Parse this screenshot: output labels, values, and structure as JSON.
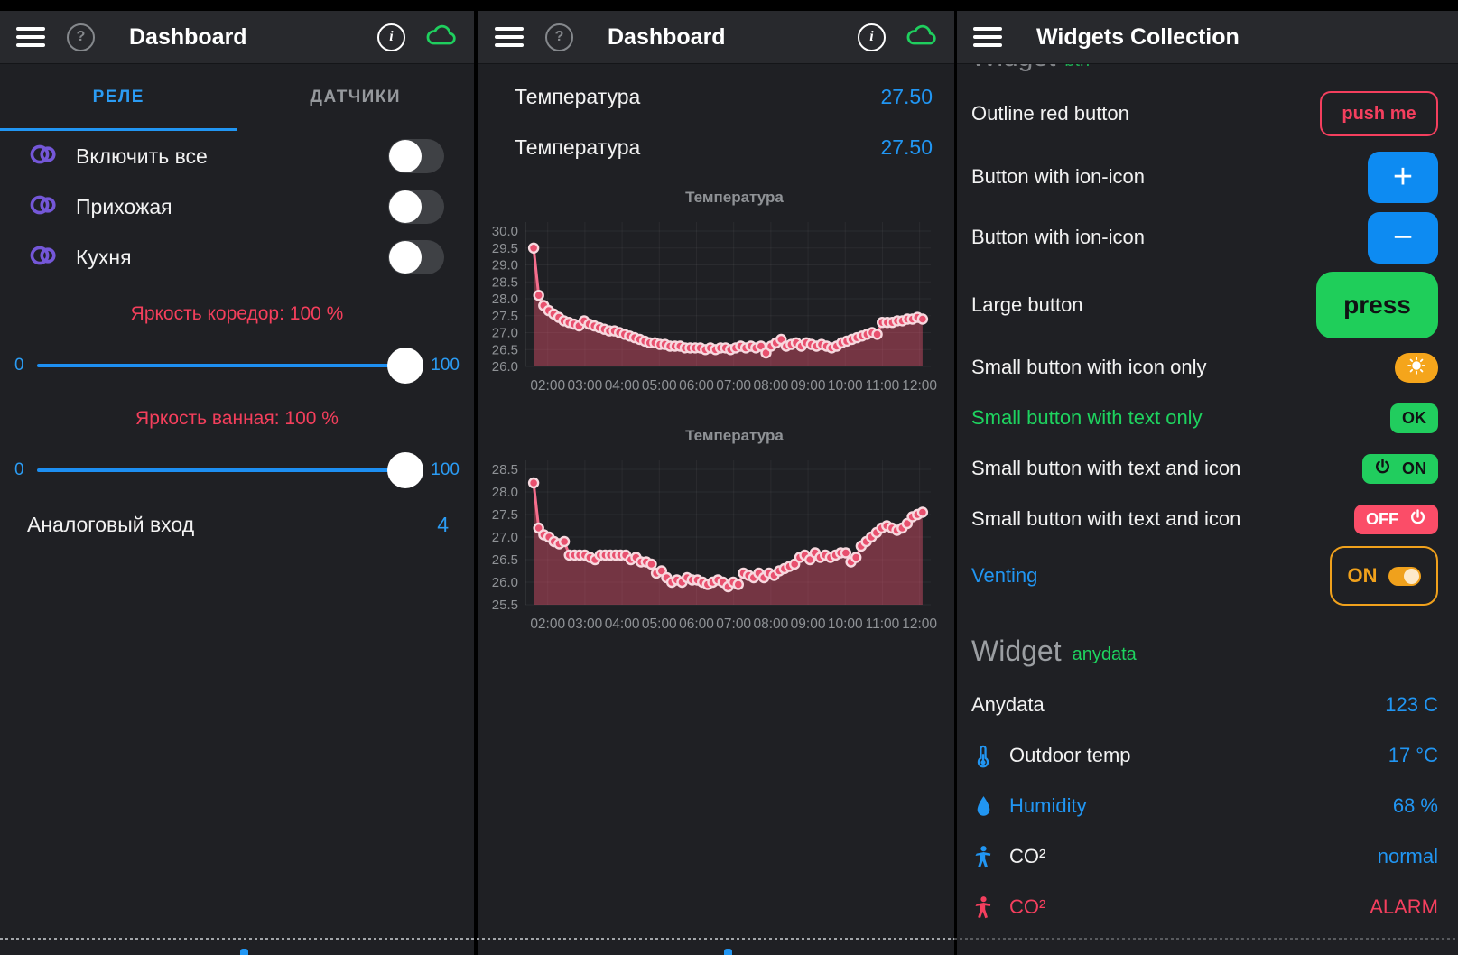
{
  "colors": {
    "accent_blue": "#2196f3",
    "pink_red": "#f43f5e",
    "green": "#1ed35f",
    "orange": "#f5a51b",
    "purple": "#7457d8",
    "button_blue": "#0d8bf2",
    "cloud_green": "#1fcf5e",
    "chart_line": "#f56e8d",
    "chart_dot": "#e8506e"
  },
  "left_screen": {
    "header": {
      "title": "Dashboard"
    },
    "tabs": [
      {
        "label": "РЕЛЕ",
        "active": true
      },
      {
        "label": "ДАТЧИКИ",
        "active": false
      }
    ],
    "switches": [
      {
        "icon": "toggle-icon",
        "label": "Включить все",
        "state": "off"
      },
      {
        "icon": "toggle-icon",
        "label": "Прихожая",
        "state": "off"
      },
      {
        "icon": "toggle-icon",
        "label": "Кухня",
        "state": "off"
      }
    ],
    "sliders": [
      {
        "label": "Яркость коредор: 100 %",
        "min": "0",
        "max": "100",
        "value": 100
      },
      {
        "label": "Яркость ванная: 100 %",
        "min": "0",
        "max": "100",
        "value": 100
      }
    ],
    "analog": {
      "label": "Аналоговый вход",
      "value": "4"
    }
  },
  "mid_screen": {
    "header": {
      "title": "Dashboard"
    },
    "value_rows": [
      {
        "label": "Температура",
        "value": "27.50"
      },
      {
        "label": "Температура",
        "value": "27.50"
      }
    ]
  },
  "right_screen": {
    "header": {
      "title": "Widgets Collection"
    },
    "clipped_heading": {
      "word": "Widget",
      "tag": "btn"
    },
    "button_rows": [
      {
        "label": "Outline red button",
        "button_text": "push me",
        "style": "outline-red"
      },
      {
        "label": "Button with ion-icon",
        "glyph": "+",
        "icon": "plus-icon",
        "style": "blue"
      },
      {
        "label": "Button with ion-icon",
        "glyph": "−",
        "icon": "minus-icon",
        "style": "blue"
      },
      {
        "label": "Large button",
        "button_text": "press",
        "style": "green-large"
      },
      {
        "label": "Small button with icon only",
        "icon": "sun-icon",
        "style": "orange-small"
      },
      {
        "label": "Small button with text only",
        "button_text": "OK",
        "style": "green-small"
      },
      {
        "label": "Small button with text and icon",
        "button_text": "ON",
        "icon": "power-icon",
        "style": "green-small"
      },
      {
        "label": "Small button with text and icon",
        "button_text": "OFF",
        "icon": "power-icon",
        "style": "red-small"
      },
      {
        "label": "Venting",
        "button_text": "ON",
        "style": "outline-orange-toggle",
        "toggle_state": "on"
      }
    ],
    "anydata": {
      "heading": "Widget",
      "tag": "anydata",
      "rows": [
        {
          "label": "Anydata",
          "value": "123 C"
        },
        {
          "icon": "thermometer-icon",
          "label": "Outdoor temp",
          "value": "17 °C"
        },
        {
          "icon": "droplet-icon",
          "label": "Humidity",
          "value": "68 %"
        },
        {
          "icon": "person-icon",
          "label": "CO²",
          "value": "normal"
        },
        {
          "icon": "person-icon",
          "label": "CO²",
          "value": "ALARM"
        }
      ]
    }
  },
  "chart_data": [
    {
      "type": "line",
      "title": "Температура",
      "x_ticks": [
        "02:00",
        "03:00",
        "04:00",
        "05:00",
        "06:00",
        "07:00",
        "08:00",
        "09:00",
        "10:00",
        "11:00",
        "12:00"
      ],
      "ylim": [
        26.0,
        30.0
      ],
      "y_step": 0.5,
      "grid": true,
      "area": true,
      "values": [
        29.5,
        28.1,
        27.8,
        27.65,
        27.55,
        27.45,
        27.35,
        27.3,
        27.25,
        27.2,
        27.35,
        27.25,
        27.2,
        27.15,
        27.1,
        27.05,
        27.05,
        27.0,
        26.95,
        26.9,
        26.85,
        26.8,
        26.75,
        26.7,
        26.7,
        26.65,
        26.65,
        26.6,
        26.6,
        26.6,
        26.55,
        26.55,
        26.55,
        26.55,
        26.5,
        26.55,
        26.5,
        26.55,
        26.55,
        26.5,
        26.55,
        26.6,
        26.55,
        26.6,
        26.55,
        26.6,
        26.4,
        26.6,
        26.7,
        26.8,
        26.6,
        26.65,
        26.7,
        26.6,
        26.7,
        26.65,
        26.6,
        26.65,
        26.6,
        26.55,
        26.6,
        26.7,
        26.75,
        26.8,
        26.85,
        26.9,
        26.95,
        27.0,
        26.95,
        27.3,
        27.3,
        27.3,
        27.35,
        27.35,
        27.4,
        27.4,
        27.45,
        27.4
      ]
    },
    {
      "type": "line",
      "title": "Температура",
      "x_ticks": [
        "02:00",
        "03:00",
        "04:00",
        "05:00",
        "06:00",
        "07:00",
        "08:00",
        "09:00",
        "10:00",
        "11:00",
        "12:00"
      ],
      "ylim": [
        25.5,
        28.5
      ],
      "y_step": 0.5,
      "grid": true,
      "area": true,
      "values": [
        28.2,
        27.2,
        27.05,
        27.0,
        26.9,
        26.85,
        26.9,
        26.6,
        26.6,
        26.6,
        26.6,
        26.55,
        26.5,
        26.6,
        26.6,
        26.6,
        26.6,
        26.6,
        26.6,
        26.5,
        26.55,
        26.45,
        26.45,
        26.4,
        26.2,
        26.25,
        26.1,
        26.0,
        26.05,
        26.0,
        26.1,
        26.05,
        26.05,
        26.0,
        25.95,
        26.0,
        26.05,
        26.0,
        25.9,
        26.0,
        25.95,
        26.2,
        26.15,
        26.1,
        26.2,
        26.1,
        26.2,
        26.15,
        26.25,
        26.3,
        26.35,
        26.4,
        26.55,
        26.6,
        26.5,
        26.65,
        26.55,
        26.6,
        26.55,
        26.6,
        26.65,
        26.65,
        26.45,
        26.55,
        26.8,
        26.9,
        27.0,
        27.1,
        27.2,
        27.25,
        27.2,
        27.15,
        27.2,
        27.3,
        27.45,
        27.5,
        27.55
      ]
    }
  ]
}
